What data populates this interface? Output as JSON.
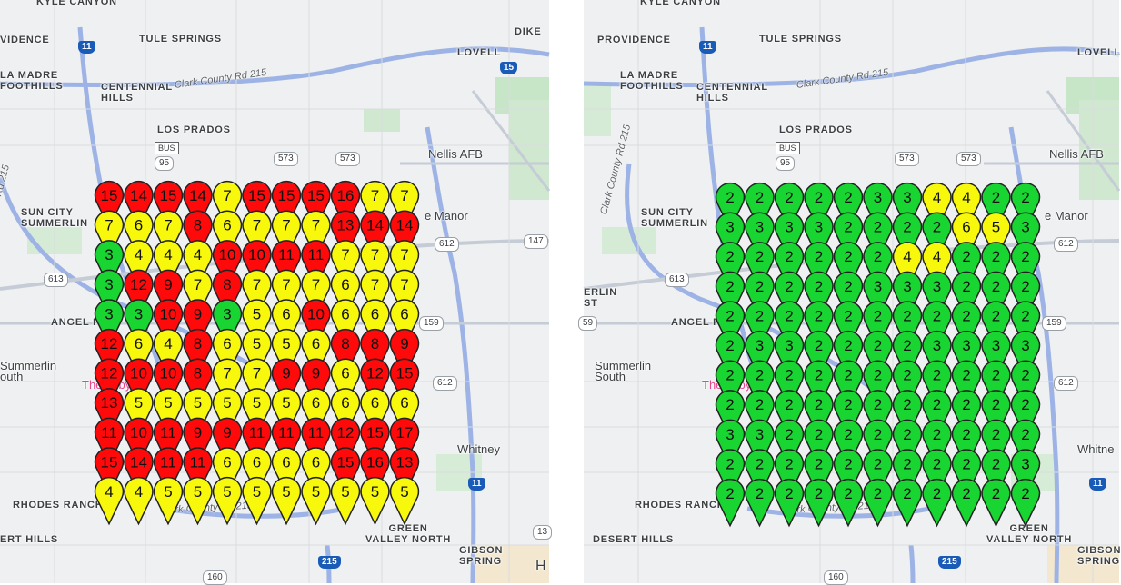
{
  "colors": {
    "red": "#ff0a0a",
    "yellow": "#f8f80c",
    "green": "#18d531",
    "pin_stroke": "#222222"
  },
  "icon_names": {
    "pin": "map-pin-marker-icon",
    "interstate": "interstate-shield-icon",
    "route": "route-shield-icon"
  },
  "panels": [
    {
      "labels": {
        "kyle_canyon": "KYLE CANYON",
        "providence": "VIDENCE",
        "tule_springs": "TULE SPRINGS",
        "dike": "DIKE",
        "lovell": "LOVELL",
        "la_madre": "LA MADRE\nFOOTHILLS",
        "centennial": "CENTENNIAL\nHILLS",
        "los_prados": "LOS PRADOS",
        "nellis": "Nellis AFB",
        "sun_city": "SUN CITY\nSUMMERLIN",
        "manor": "e Manor",
        "angel_park": "ANGEL P",
        "summerlin_south": "Summerlin\nouth",
        "whitney": "Whitney",
        "rhodes_ranch": "RHODES RANCH",
        "desert_hills": "ERT HILLS",
        "green_valley": "GREEN\nVALLEY NORTH",
        "gibson": "GIBSON\nSPRING",
        "poi": "The ... by",
        "edge_h": "H",
        "road_clark_top": "Clark County Rd 215",
        "road_clark_bottom": "Clark County Rd 215",
        "road_215_vert": "Rd 215"
      },
      "shields": {
        "i11_top": "11",
        "i15_top": "15",
        "bus95": "BUS",
        "r95": "95",
        "r573a": "573",
        "r573b": "573",
        "r612": "612",
        "r147": "147",
        "r613": "613",
        "r159": "159",
        "r612b": "612",
        "i11_bottom": "11",
        "i215": "215",
        "r160": "160",
        "r13": "13"
      },
      "grid": [
        [
          15,
          14,
          15,
          14,
          7,
          15,
          15,
          15,
          16,
          7,
          7
        ],
        [
          7,
          6,
          7,
          8,
          6,
          7,
          7,
          7,
          13,
          14,
          14
        ],
        [
          3,
          4,
          4,
          4,
          10,
          10,
          11,
          11,
          7,
          7,
          7
        ],
        [
          3,
          12,
          9,
          7,
          8,
          7,
          7,
          7,
          6,
          7,
          7
        ],
        [
          3,
          3,
          10,
          9,
          3,
          5,
          6,
          10,
          6,
          6,
          6
        ],
        [
          12,
          6,
          4,
          8,
          6,
          5,
          5,
          6,
          8,
          8,
          9
        ],
        [
          12,
          10,
          10,
          8,
          7,
          7,
          9,
          9,
          6,
          12,
          15
        ],
        [
          13,
          5,
          5,
          5,
          5,
          5,
          5,
          6,
          6,
          6,
          6
        ],
        [
          11,
          10,
          11,
          9,
          9,
          11,
          11,
          11,
          12,
          15,
          17
        ],
        [
          15,
          14,
          11,
          11,
          6,
          6,
          6,
          6,
          15,
          16,
          13
        ],
        [
          4,
          4,
          5,
          5,
          5,
          5,
          5,
          5,
          5,
          5,
          5
        ]
      ]
    },
    {
      "labels": {
        "kyle_canyon": "KYLE CANYON",
        "providence": "PROVIDENCE",
        "tule_springs": "TULE SPRINGS",
        "lovell": "LOVELL",
        "la_madre": "LA MADRE\nFOOTHILLS",
        "centennial": "CENTENNIAL\nHILLS",
        "los_prados": "LOS PRADOS",
        "nellis": "Nellis AFB",
        "sun_city": "SUN CITY\nSUMMERLIN",
        "manor": "e Manor",
        "angel_park": "ANGEL P",
        "summerlin_south": "Summerlin\nSouth",
        "whitney": "Whitne",
        "rhodes_ranch": "RHODES RANCH",
        "desert_hills": "DESERT HILLS",
        "green_valley": "GREEN\nVALLEY NORTH",
        "gibson": "GIBSON\nSPRING",
        "poi": "The ... by",
        "edge_st": "ERLIN\nST",
        "road_clark_top": "Clark County Rd 215",
        "road_clark_bottom": "Clark County Rd 215",
        "road_215_vert": "Clark County Rd 215"
      },
      "shields": {
        "i11_top": "11",
        "bus95": "BUS",
        "r95": "95",
        "r573a": "573",
        "r573b": "573",
        "r612": "612",
        "r613": "613",
        "r159": "159",
        "r612b": "612",
        "i11_bottom": "11",
        "i215": "215",
        "r160": "160",
        "r59": "59"
      },
      "grid": [
        [
          2,
          2,
          2,
          2,
          2,
          3,
          3,
          4,
          4,
          2,
          2
        ],
        [
          3,
          3,
          3,
          3,
          2,
          2,
          2,
          2,
          6,
          5,
          3
        ],
        [
          2,
          2,
          2,
          2,
          2,
          2,
          4,
          4,
          2,
          2,
          2
        ],
        [
          2,
          2,
          2,
          2,
          2,
          3,
          3,
          3,
          2,
          2,
          2
        ],
        [
          2,
          2,
          2,
          2,
          2,
          2,
          2,
          2,
          2,
          2,
          2
        ],
        [
          2,
          3,
          3,
          2,
          2,
          2,
          2,
          3,
          3,
          3,
          3
        ],
        [
          2,
          2,
          2,
          2,
          2,
          2,
          2,
          2,
          2,
          2,
          2
        ],
        [
          2,
          2,
          2,
          2,
          2,
          2,
          2,
          2,
          2,
          2,
          2
        ],
        [
          3,
          3,
          2,
          2,
          2,
          2,
          2,
          2,
          2,
          2,
          2
        ],
        [
          2,
          2,
          2,
          2,
          2,
          2,
          2,
          2,
          2,
          2,
          3
        ],
        [
          2,
          2,
          2,
          2,
          2,
          2,
          2,
          2,
          2,
          2,
          2
        ]
      ]
    }
  ]
}
